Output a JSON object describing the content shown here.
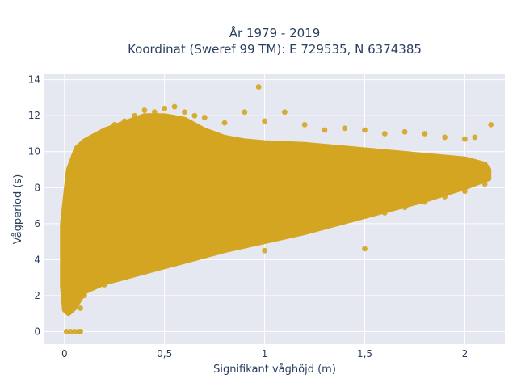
{
  "chart_data": {
    "type": "scatter",
    "title_line1": "År 1979 - 2019",
    "title_line2": "Koordinat (Sweref 99 TM): E 729535, N 6374385",
    "xlabel": "Signifikant våghöjd (m)",
    "ylabel": "Vågperiod (s)",
    "xlim": [
      -0.1,
      2.2
    ],
    "ylim": [
      -0.7,
      14.3
    ],
    "x_ticks": [
      0,
      0.5,
      1,
      1.5,
      2
    ],
    "x_tick_labels": [
      "0",
      "0,5",
      "1",
      "1,5",
      "2"
    ],
    "y_ticks": [
      0,
      2,
      4,
      6,
      8,
      10,
      12,
      14
    ],
    "y_tick_labels": [
      "0",
      "2",
      "4",
      "6",
      "8",
      "10",
      "12",
      "14"
    ],
    "grid": true,
    "colors": {
      "marker": "#d4a520",
      "plot_bg": "#e5e8f1",
      "grid": "#ffffff",
      "text": "#2a3f5f"
    },
    "series": [
      {
        "points": [
          [
            0.01,
            0
          ],
          [
            0.03,
            0
          ],
          [
            0.05,
            0
          ],
          [
            0.07,
            0
          ],
          [
            0.08,
            0
          ],
          [
            0.02,
            2.0
          ],
          [
            0.03,
            3.5
          ],
          [
            0.04,
            5.0
          ],
          [
            0.05,
            6.0
          ],
          [
            0.06,
            7.5
          ],
          [
            0.07,
            8.5
          ],
          [
            0.08,
            1.3
          ],
          [
            0.1,
            10.3
          ],
          [
            0.15,
            10.8
          ],
          [
            0.2,
            11.0
          ],
          [
            0.25,
            11.5
          ],
          [
            0.3,
            11.7
          ],
          [
            0.35,
            12.0
          ],
          [
            0.4,
            12.3
          ],
          [
            0.45,
            12.2
          ],
          [
            0.5,
            12.4
          ],
          [
            0.55,
            12.5
          ],
          [
            0.6,
            12.2
          ],
          [
            0.65,
            12.0
          ],
          [
            0.7,
            11.9
          ],
          [
            0.8,
            11.6
          ],
          [
            0.9,
            12.2
          ],
          [
            0.97,
            13.6
          ],
          [
            1.0,
            11.7
          ],
          [
            1.1,
            12.2
          ],
          [
            1.2,
            11.5
          ],
          [
            1.3,
            11.2
          ],
          [
            1.4,
            11.3
          ],
          [
            1.5,
            11.2
          ],
          [
            1.6,
            11.0
          ],
          [
            1.7,
            11.1
          ],
          [
            1.8,
            11.0
          ],
          [
            1.9,
            10.8
          ],
          [
            2.0,
            10.7
          ],
          [
            2.05,
            10.8
          ],
          [
            2.1,
            9.3
          ],
          [
            2.13,
            11.5
          ],
          [
            0.1,
            2.0
          ],
          [
            0.2,
            2.6
          ],
          [
            0.3,
            3.0
          ],
          [
            0.4,
            3.3
          ],
          [
            0.5,
            3.7
          ],
          [
            0.6,
            4.0
          ],
          [
            0.7,
            4.3
          ],
          [
            0.8,
            4.6
          ],
          [
            0.9,
            4.9
          ],
          [
            1.0,
            4.5
          ],
          [
            1.1,
            5.4
          ],
          [
            1.2,
            5.7
          ],
          [
            1.3,
            6.0
          ],
          [
            1.5,
            4.6
          ],
          [
            1.6,
            6.6
          ],
          [
            1.7,
            6.9
          ],
          [
            1.8,
            7.2
          ],
          [
            1.9,
            7.5
          ],
          [
            2.0,
            7.8
          ],
          [
            2.1,
            8.2
          ],
          [
            0.2,
            6.0
          ],
          [
            0.4,
            8.0
          ],
          [
            0.6,
            7.0
          ],
          [
            0.8,
            8.5
          ],
          [
            1.0,
            7.5
          ],
          [
            1.2,
            8.0
          ],
          [
            1.4,
            8.5
          ],
          [
            1.6,
            9.0
          ],
          [
            1.8,
            8.7
          ],
          [
            2.0,
            9.0
          ]
        ]
      }
    ]
  }
}
